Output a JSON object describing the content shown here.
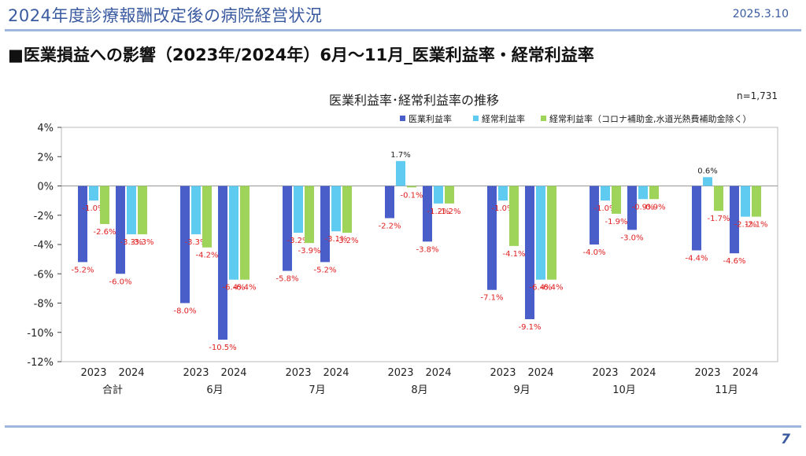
{
  "header": {
    "title": "2024年度診療報酬改定後の病院経営状況",
    "date": "2025.3.10"
  },
  "subtitle": "■医業損益への影響（2023年/2024年）6月～11月_医業利益率・経常利益率",
  "footer": {
    "page_number": "7"
  },
  "colors": {
    "series1": "#4a5ec9",
    "series2": "#5fcbf0",
    "series3": "#9fd45b",
    "label": "#e02020",
    "axis": "#222222",
    "header_rule": "#9fb6dd"
  },
  "chart_data": {
    "type": "bar",
    "title": "医業利益率･経常利益率の推移",
    "note": "n=1,731",
    "ylim": [
      -12,
      4
    ],
    "yticks": [
      "4%",
      "2%",
      "0%",
      "-2%",
      "-4%",
      "-6%",
      "-8%",
      "-10%",
      "-12%"
    ],
    "ytick_values": [
      4,
      2,
      0,
      -2,
      -4,
      -6,
      -8,
      -10,
      -12
    ],
    "groups": [
      "合計",
      "6月",
      "7月",
      "8月",
      "9月",
      "10月",
      "11月"
    ],
    "years": [
      "2023",
      "2024"
    ],
    "series": [
      {
        "name": "医業利益率",
        "values": [
          [
            -5.2,
            -6.0
          ],
          [
            -8.0,
            -10.5
          ],
          [
            -5.8,
            -5.2
          ],
          [
            -2.2,
            -3.8
          ],
          [
            -7.1,
            -9.1
          ],
          [
            -4.0,
            -3.0
          ],
          [
            -4.4,
            -4.6
          ]
        ],
        "labels": [
          [
            "-5.2%",
            "-6.0%"
          ],
          [
            "-8.0%",
            "-10.5%"
          ],
          [
            "-5.8%",
            "-5.2%"
          ],
          [
            "-2.2%",
            "-3.8%"
          ],
          [
            "-7.1%",
            "-9.1%"
          ],
          [
            "-4.0%",
            "-3.0%"
          ],
          [
            "-4.4%",
            "-4.6%"
          ]
        ]
      },
      {
        "name": "経常利益率",
        "values": [
          [
            -1.0,
            -3.3
          ],
          [
            -3.3,
            -6.4
          ],
          [
            -3.2,
            -3.1
          ],
          [
            1.7,
            -1.2
          ],
          [
            -1.0,
            -6.4
          ],
          [
            -1.0,
            -0.9
          ],
          [
            0.6,
            -2.1
          ]
        ],
        "labels": [
          [
            "-1.0%",
            "-3.3%"
          ],
          [
            "-3.3%",
            "-6.4%"
          ],
          [
            "-3.2%",
            "-3.1%"
          ],
          [
            "1.7%",
            "-1.2%"
          ],
          [
            "-1.0%",
            "-6.4%"
          ],
          [
            "-1.0%",
            "-0.9%"
          ],
          [
            "0.6%",
            "-2.1%"
          ]
        ]
      },
      {
        "name": "経常利益率（コロナ補助金,水道光熱費補助金除く）",
        "values": [
          [
            -2.6,
            -3.3
          ],
          [
            -4.2,
            -6.4
          ],
          [
            -3.9,
            -3.2
          ],
          [
            -0.1,
            -1.2
          ],
          [
            -4.1,
            -6.4
          ],
          [
            -1.9,
            -0.9
          ],
          [
            -1.7,
            -2.1
          ]
        ],
        "labels": [
          [
            "-2.6%",
            "-3.3%"
          ],
          [
            "-4.2%",
            "-6.4%"
          ],
          [
            "-3.9%",
            "-3.2%"
          ],
          [
            "-0.1%",
            "-1.2%"
          ],
          [
            "-4.1%",
            "-6.4%"
          ],
          [
            "-1.9%",
            "-0.9%"
          ],
          [
            "-1.7%",
            "-2.1%"
          ]
        ]
      }
    ],
    "legend_position": "top-right"
  }
}
